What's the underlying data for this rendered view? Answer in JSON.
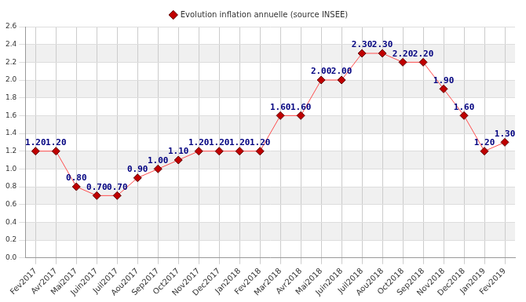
{
  "chart_data": {
    "type": "line",
    "categories": [
      "Fev2017",
      "Avr2017",
      "Mai2017",
      "Juin2017",
      "Juil2017",
      "Aou2017",
      "Sep2017",
      "Oct2017",
      "Nov2017",
      "Dec2017",
      "Jan2018",
      "Fev2018",
      "Mar2018",
      "Avr2018",
      "Mai2018",
      "Juin2018",
      "Juil2018",
      "Aou2018",
      "Oct2018",
      "Sep2018",
      "Nov2018",
      "Dec2018",
      "Jan2019",
      "Fev2019"
    ],
    "series": [
      {
        "name": "Evolution inflation annuelle (source INSEE)",
        "color": "#ff4d4d",
        "marker": "diamond",
        "values": [
          1.2,
          1.2,
          0.8,
          0.7,
          0.7,
          0.9,
          1.0,
          1.1,
          1.2,
          1.2,
          1.2,
          1.2,
          1.6,
          1.6,
          2.0,
          2.0,
          2.3,
          2.3,
          2.2,
          2.2,
          1.9,
          1.6,
          1.2,
          1.3
        ],
        "value_labels": [
          "1.20",
          "1.20",
          "0.80",
          "0.70",
          "0.70",
          "0.90",
          "1.00",
          "1.10",
          "1.20",
          "1.20",
          "1.20",
          "1.20",
          "1.60",
          "1.60",
          "2.00",
          "2.00",
          "2.30",
          "2.30",
          "2.20",
          "2.20",
          "1.90",
          "1.60",
          "1.20",
          "1.30"
        ]
      }
    ],
    "ylim": [
      0,
      2.6
    ],
    "yticks": [
      {
        "value": 0,
        "label": "0.0"
      },
      0.2,
      0.4,
      0.6,
      0.8,
      {
        "value": 1,
        "label": "1.0"
      },
      1.2,
      1.4,
      1.6,
      1.8,
      {
        "value": 2,
        "label": "2.0"
      },
      2.2,
      2.4,
      2.6
    ],
    "grid": true,
    "legend": "top",
    "data_labels": true
  }
}
